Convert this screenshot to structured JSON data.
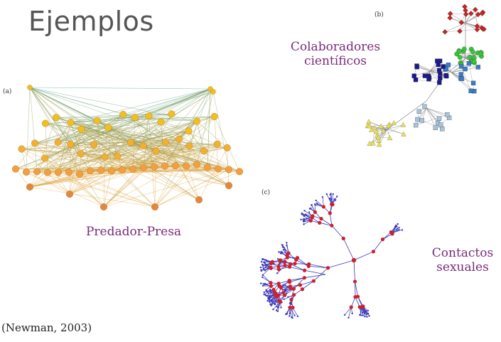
{
  "slide": {
    "title": "Ejemplos",
    "panels": {
      "a": {
        "letter": "(a)",
        "caption": "Predador-Presa"
      },
      "b": {
        "letter": "(b)",
        "caption_line1": "Colaboradores",
        "caption_line2": "científicos"
      },
      "c": {
        "letter": "(c)",
        "caption_line1": "Contactos",
        "caption_line2": "sexuales"
      }
    },
    "credit": "(Newman, 2003)"
  },
  "colors": {
    "title": "#555555",
    "caption": "#7a2a7a",
    "foodweb_top": "#2f9e8f",
    "foodweb_bottom": "#e0a030",
    "collab_red": "#c0282a",
    "collab_green": "#40c040",
    "collab_blue": "#3a7cc8",
    "collab_navy": "#1a1a8a",
    "collab_light": "#a8c4dc",
    "collab_yellow": "#e8e050",
    "sexual_node": "#d0202a",
    "sexual_edge": "#3a3ab8"
  }
}
